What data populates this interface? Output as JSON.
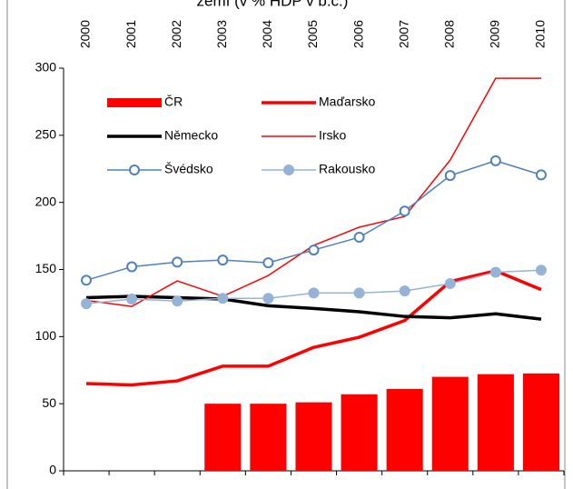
{
  "chart_data": {
    "type": "line",
    "title": "zemí (v % HDP v b.c.)",
    "categories": [
      "2000",
      "2001",
      "2002",
      "2003",
      "2004",
      "2005",
      "2006",
      "2007",
      "2008",
      "2009",
      "2010"
    ],
    "ylim": [
      0,
      300
    ],
    "yticks": [
      0,
      50,
      100,
      150,
      200,
      250,
      300
    ],
    "series": [
      {
        "name": "ČR",
        "type": "bar",
        "color": "#ff0000",
        "values": [
          null,
          null,
          null,
          50,
          50,
          51,
          57,
          61,
          70,
          72,
          72.5
        ]
      },
      {
        "name": "Maďarsko",
        "type": "line",
        "color": "#ff0000",
        "width": 3.5,
        "values": [
          65,
          64,
          67,
          78,
          78,
          92,
          99.5,
          112,
          141,
          149,
          135
        ]
      },
      {
        "name": "Německo",
        "type": "line",
        "color": "#000000",
        "width": 3.5,
        "values": [
          129,
          130,
          129,
          128,
          123,
          121,
          118.5,
          115,
          114,
          117,
          113
        ]
      },
      {
        "name": "Irsko",
        "type": "line",
        "color": "#ff0000",
        "width": 1.5,
        "values": [
          127,
          122.5,
          141.5,
          130,
          145.5,
          168,
          181.5,
          189.5,
          231.5,
          292.5,
          292.5
        ]
      },
      {
        "name": "Švédsko",
        "type": "line",
        "color": "#4f81bd",
        "width": 1.5,
        "marker": "open",
        "values": [
          142,
          152,
          155.5,
          157,
          155,
          164.5,
          174,
          193.5,
          220,
          231,
          220.5
        ]
      },
      {
        "name": "Rakousko",
        "type": "line",
        "color": "#95b3d7",
        "width": 1.5,
        "marker": "filled",
        "values": [
          124.5,
          128,
          126.5,
          128.5,
          128.5,
          132.5,
          132.5,
          134,
          139.5,
          148,
          149.5
        ]
      }
    ]
  }
}
